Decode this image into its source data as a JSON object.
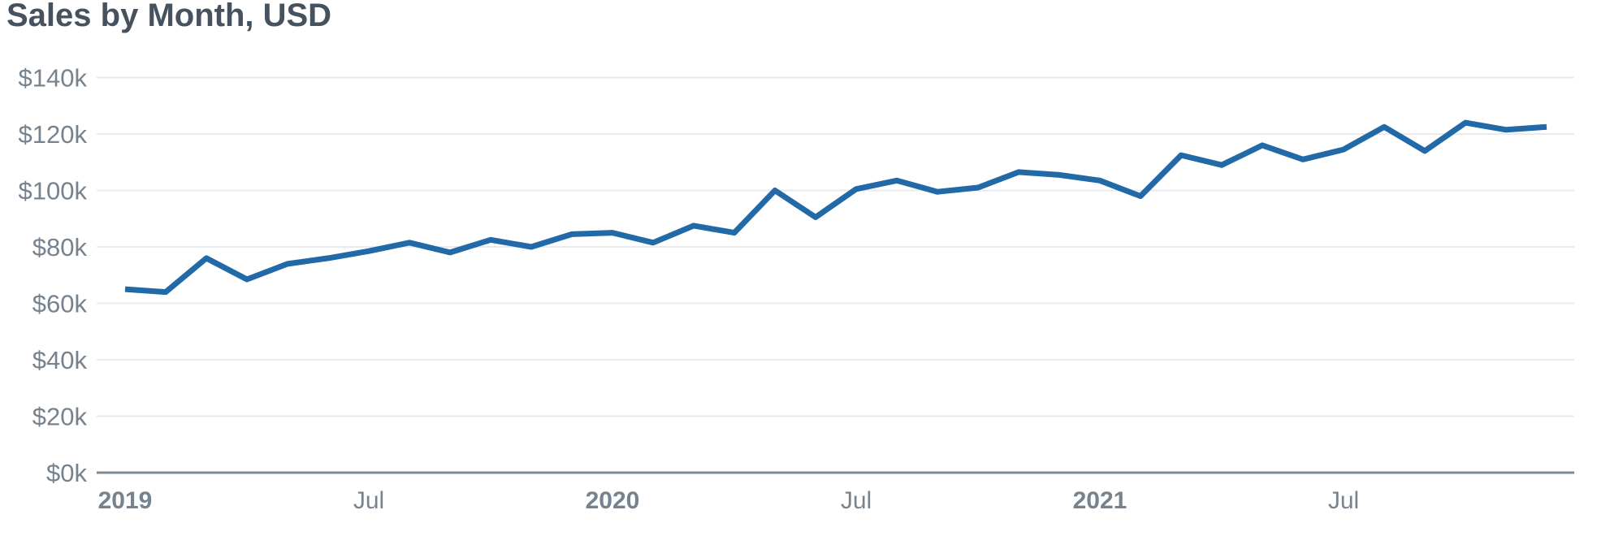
{
  "chart_data": {
    "type": "line",
    "title": "Sales by Month, USD",
    "series_name": "Sales",
    "x": [
      "Jan 2019",
      "Feb 2019",
      "Mar 2019",
      "Apr 2019",
      "May 2019",
      "Jun 2019",
      "Jul 2019",
      "Aug 2019",
      "Sep 2019",
      "Oct 2019",
      "Nov 2019",
      "Dec 2019",
      "Jan 2020",
      "Feb 2020",
      "Mar 2020",
      "Apr 2020",
      "May 2020",
      "Jun 2020",
      "Jul 2020",
      "Aug 2020",
      "Sep 2020",
      "Oct 2020",
      "Nov 2020",
      "Dec 2020",
      "Jan 2021",
      "Feb 2021",
      "Mar 2021",
      "Apr 2021",
      "May 2021",
      "Jun 2021",
      "Jul 2021",
      "Aug 2021",
      "Sep 2021",
      "Oct 2021",
      "Nov 2021",
      "Dec 2021"
    ],
    "values": [
      65000,
      64000,
      76000,
      68500,
      74000,
      76000,
      78500,
      81500,
      78000,
      82500,
      80000,
      84500,
      85000,
      81500,
      87500,
      85000,
      100000,
      90500,
      100500,
      103500,
      99500,
      101000,
      106500,
      105500,
      103500,
      98000,
      112500,
      109000,
      116000,
      111000,
      114500,
      122500,
      114000,
      124000,
      121500,
      122500
    ],
    "xlabel": "",
    "ylabel": "",
    "ylim": [
      0,
      140000
    ],
    "yticks": {
      "values": [
        0,
        20000,
        40000,
        60000,
        80000,
        100000,
        120000,
        140000
      ],
      "labels": [
        "$0k",
        "$20k",
        "$40k",
        "$60k",
        "$80k",
        "$100k",
        "$120k",
        "$140k"
      ]
    },
    "xticks": [
      {
        "label": "2019",
        "month_index": 0,
        "bold": true
      },
      {
        "label": "Jul",
        "month_index": 6,
        "bold": false
      },
      {
        "label": "2020",
        "month_index": 12,
        "bold": true
      },
      {
        "label": "Jul",
        "month_index": 18,
        "bold": false
      },
      {
        "label": "2021",
        "month_index": 24,
        "bold": true
      },
      {
        "label": "Jul",
        "month_index": 30,
        "bold": false
      }
    ],
    "grid": true,
    "legend": "none",
    "colors": {
      "line": "#2269a8",
      "grid": "#e8eaed",
      "axis": "#7e8a97",
      "tick_label": "#76838f",
      "title": "#46535e"
    }
  }
}
